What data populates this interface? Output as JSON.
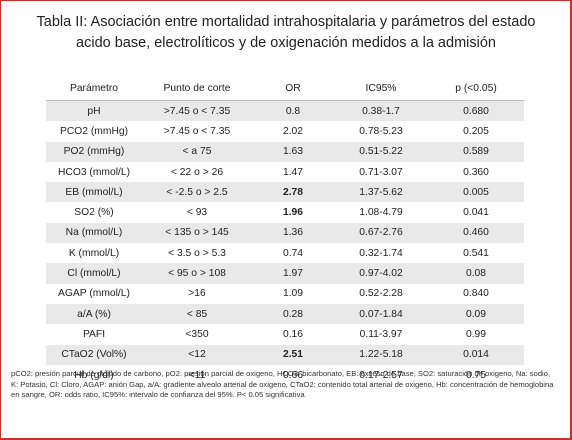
{
  "title_line1": "Tabla II: Asociación entre mortalidad intrahospitalaria y parámetros del estado",
  "title_line2": "acido base, electrolíticos y de oxigenación medidos a la admisión",
  "headers": [
    "Parámetro",
    "Punto de corte",
    "OR",
    "IC95%",
    "p (<0.05)"
  ],
  "rows": [
    {
      "param": "pH",
      "cutoff": ">7.45 o < 7.35",
      "or": "0.8",
      "ic": "0.38-1.7",
      "p": "0.680",
      "bold": false
    },
    {
      "param": "PCO2 (mmHg)",
      "cutoff": ">7.45 o < 7.35",
      "or": "2.02",
      "ic": "0.78-5.23",
      "p": "0.205",
      "bold": false
    },
    {
      "param": "PO2 (mmHg)",
      "cutoff": "< a 75",
      "or": "1.63",
      "ic": "0.51-5.22",
      "p": "0.589",
      "bold": false
    },
    {
      "param": "HCO3 (mmol/L)",
      "cutoff": "< 22 o > 26",
      "or": "1.47",
      "ic": "0.71-3.07",
      "p": "0.360",
      "bold": false
    },
    {
      "param": "EB (mmol/L)",
      "cutoff": "< -2.5 o > 2.5",
      "or": "2.78",
      "ic": "1.37-5.62",
      "p": "0.005",
      "bold": true
    },
    {
      "param": "SO2 (%)",
      "cutoff": "< 93",
      "or": "1.96",
      "ic": "1.08-4.79",
      "p": "0.041",
      "bold": true
    },
    {
      "param": "Na (mmol/L)",
      "cutoff": "< 135 o > 145",
      "or": "1.36",
      "ic": "0.67-2.76",
      "p": "0.460",
      "bold": false
    },
    {
      "param": "K (mmol/L)",
      "cutoff": "< 3.5 o > 5.3",
      "or": "0.74",
      "ic": "0.32-1.74",
      "p": "0.541",
      "bold": false
    },
    {
      "param": "Cl (mmol/L)",
      "cutoff": "< 95 o > 108",
      "or": "1.97",
      "ic": "0.97-4.02",
      "p": "0.08",
      "bold": false
    },
    {
      "param": "AGAP (mmol/L)",
      "cutoff": ">16",
      "or": "1.09",
      "ic": "0.52-2.28",
      "p": "0.840",
      "bold": false
    },
    {
      "param": "a/A (%)",
      "cutoff": "< 85",
      "or": "0.28",
      "ic": "0.07-1.84",
      "p": "0.09",
      "bold": false
    },
    {
      "param": "PAFI",
      "cutoff": "<350",
      "or": "0.16",
      "ic": "0.11-3.97",
      "p": "0.99",
      "bold": false
    },
    {
      "param": "CTaO2 (Vol%)",
      "cutoff": "<12",
      "or": "2.51",
      "ic": "1.22-5.18",
      "p": "0.014",
      "bold": true
    },
    {
      "param": "Hb (g/dl)",
      "cutoff": "<11",
      "or": "0.66",
      "ic": "0.17-2.57",
      "p": "0.75",
      "bold": false
    }
  ],
  "footnote": "pCO2: presión parcial de dióxido de carbono, pO2: presión parcial de oxigeno, HCO3: bicarbonato, EB: exceso de base, SO2: saturación de oxigeno, Na: sodio, K: Potasio, Cl: Cloro, AGAP: anión Gap, a/A: gradiente alveolo arterial de oxigeno, CTaO2: contenido total arterial de oxigeno, Hb: concentración de hemoglobina en sangre, OR: odds ratio, IC95%: intervalo de confianza del 95%. P< 0.05 significativa"
}
